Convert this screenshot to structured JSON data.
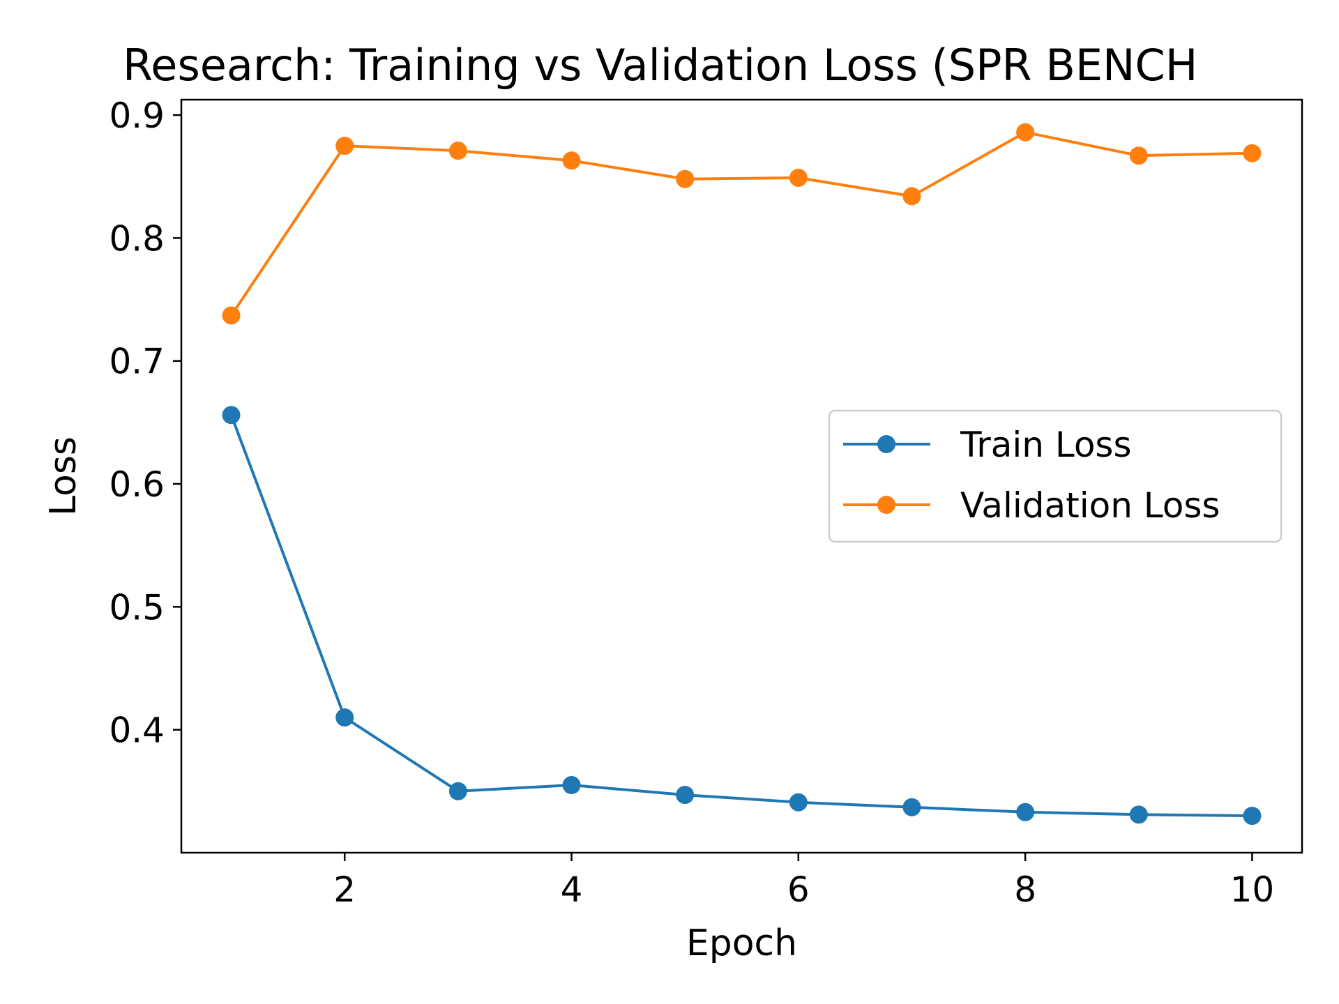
{
  "chart_data": {
    "type": "line",
    "title": "Research: Training vs Validation Loss (SPR BENCH",
    "xlabel": "Epoch",
    "ylabel": "Loss",
    "x": [
      1,
      2,
      3,
      4,
      5,
      6,
      7,
      8,
      9,
      10
    ],
    "xlim": [
      0.56,
      10.44
    ],
    "ylim": [
      0.3,
      0.9125
    ],
    "xticks": [
      2,
      4,
      6,
      8,
      10
    ],
    "xtick_labels": [
      "2",
      "4",
      "6",
      "8",
      "10"
    ],
    "yticks": [
      0.4,
      0.5,
      0.6,
      0.7,
      0.8,
      0.9
    ],
    "ytick_labels": [
      "0.4",
      "0.5",
      "0.6",
      "0.7",
      "0.8",
      "0.9"
    ],
    "grid": false,
    "legend_position": "center-right",
    "series": [
      {
        "name": "Train Loss",
        "color": "#1f77b4",
        "marker": "circle",
        "values": [
          0.656,
          0.41,
          0.35,
          0.355,
          0.347,
          0.341,
          0.337,
          0.333,
          0.331,
          0.33
        ]
      },
      {
        "name": "Validation Loss",
        "color": "#ff7f0e",
        "marker": "circle",
        "values": [
          0.737,
          0.875,
          0.871,
          0.863,
          0.848,
          0.849,
          0.834,
          0.886,
          0.867,
          0.869
        ]
      }
    ]
  }
}
